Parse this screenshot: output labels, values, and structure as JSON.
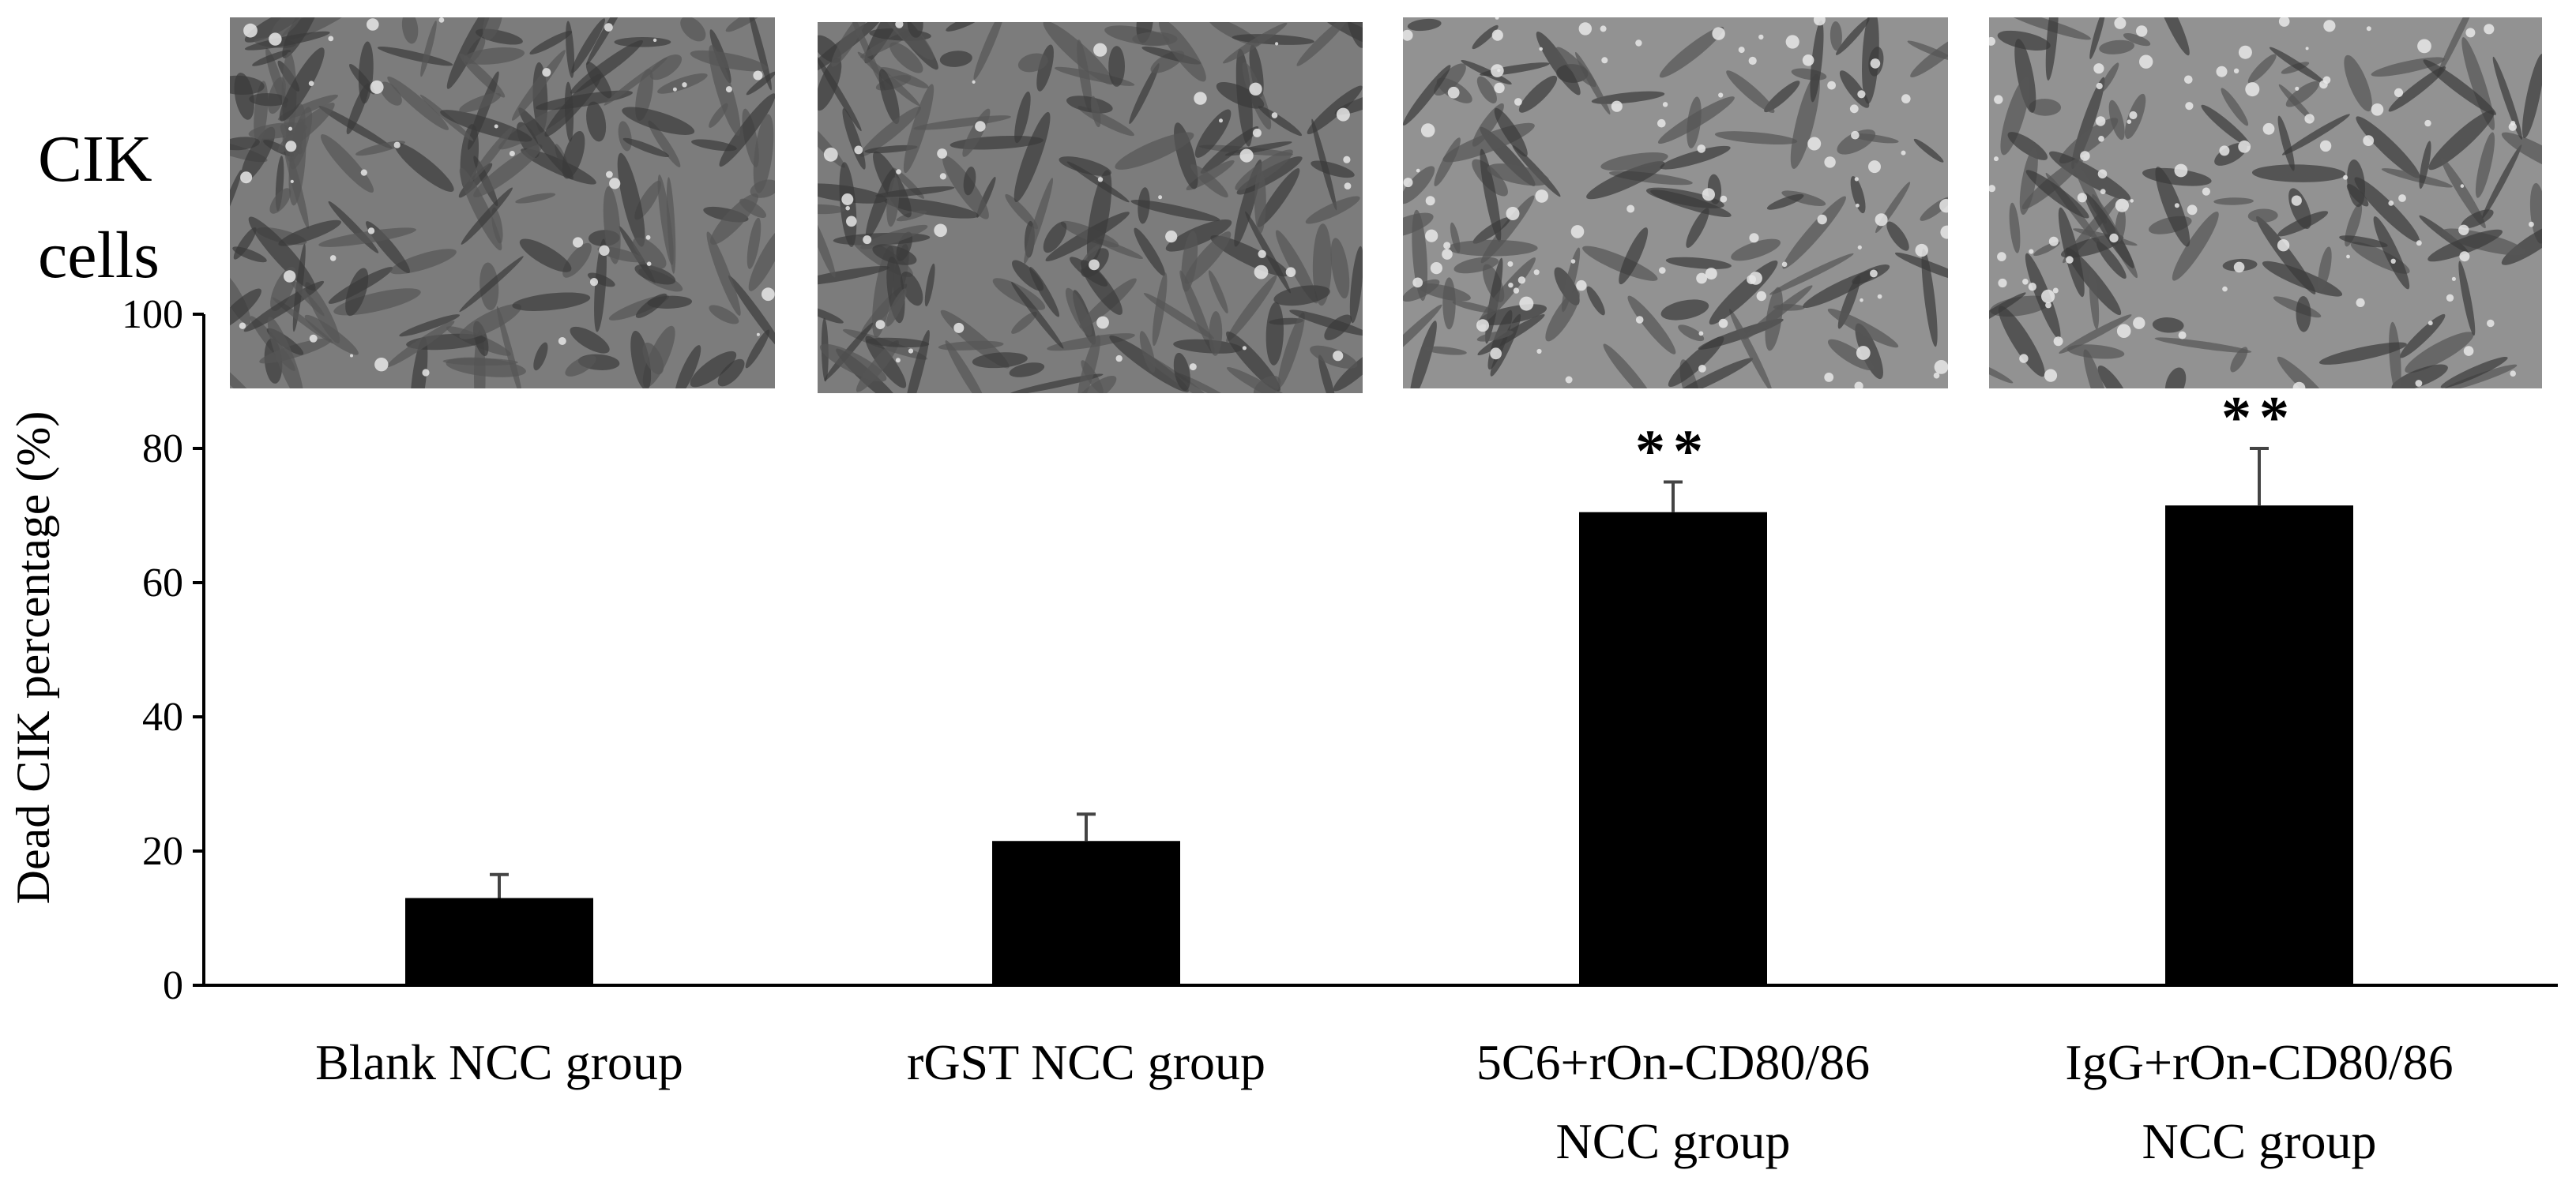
{
  "side_title": [
    "CIK",
    "cells"
  ],
  "micrograph_icon": "cell-micrograph-icon",
  "chart_data": {
    "type": "bar",
    "categories": [
      [
        "Blank NCC group"
      ],
      [
        "rGST NCC group"
      ],
      [
        "5C6+rOn-CD80/86",
        "NCC group"
      ],
      [
        "IgG+rOn-CD80/86",
        "NCC group"
      ]
    ],
    "values": [
      13,
      21.5,
      70.5,
      71.5
    ],
    "error": [
      3.5,
      4,
      4.5,
      8.5
    ],
    "annotations": [
      "",
      "",
      "**",
      "**"
    ],
    "ylabel": "Dead CIK percentage (%)",
    "yticks": [
      0,
      20,
      40,
      60,
      80,
      100
    ],
    "ylim": [
      0,
      100
    ],
    "bar_color": "#000000",
    "error_color": "#444444",
    "grid": false
  }
}
